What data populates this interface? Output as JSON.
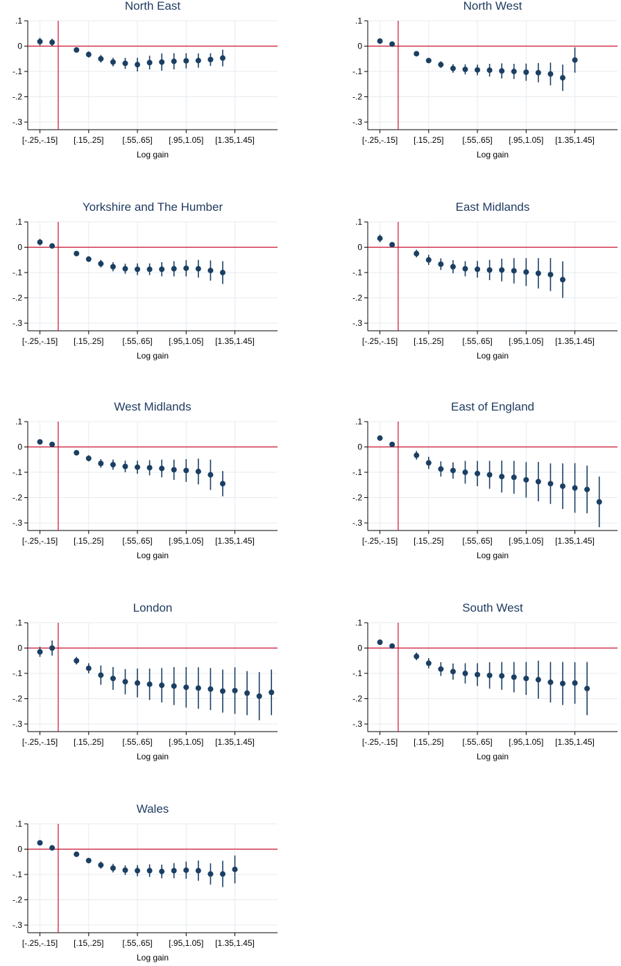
{
  "figure": {
    "colors": {
      "point": "#1b3f63",
      "ref_line": "#c8102e",
      "grid": "#e6ebf0",
      "axis": "#000000",
      "title": "#1e3a5f"
    }
  },
  "chart_data": [
    {
      "type": "scatter",
      "title": "North East",
      "xlabel": "Log gain",
      "ylabel": "",
      "x_ticklabels": [
        "[-.25,-.15]",
        "[.15,.25]",
        "[.55,.65]",
        "[.95,1.05]",
        "[1.35,1.45]"
      ],
      "y_ticklabels": [
        ".1",
        "0",
        "-.1",
        "-.2",
        "-.3"
      ],
      "ylim": [
        -0.33,
        0.1
      ],
      "grid": true,
      "reference_lines": {
        "y": 0,
        "x": -0.05
      },
      "series": [
        {
          "x": [
            -0.2,
            -0.1,
            0.1,
            0.2,
            0.3,
            0.4,
            0.5,
            0.6,
            0.7,
            0.8,
            0.9,
            1.0,
            1.1,
            1.2,
            1.3
          ],
          "y": [
            0.018,
            0.015,
            -0.015,
            -0.033,
            -0.05,
            -0.063,
            -0.068,
            -0.073,
            -0.065,
            -0.063,
            -0.06,
            -0.058,
            -0.057,
            -0.053,
            -0.047
          ],
          "ci_low": [
            0.003,
            0.001,
            -0.024,
            -0.045,
            -0.065,
            -0.08,
            -0.09,
            -0.1,
            -0.092,
            -0.097,
            -0.092,
            -0.088,
            -0.085,
            -0.078,
            -0.08
          ],
          "ci_high": [
            0.033,
            0.029,
            -0.006,
            -0.021,
            -0.035,
            -0.046,
            -0.046,
            -0.046,
            -0.038,
            -0.029,
            -0.028,
            -0.028,
            -0.029,
            -0.028,
            -0.014
          ]
        }
      ]
    },
    {
      "type": "scatter",
      "title": "North West",
      "xlabel": "Log gain",
      "ylabel": "",
      "x_ticklabels": [
        "[-.25,-.15]",
        "[.15,.25]",
        "[.55,.65]",
        "[.95,1.05]",
        "[1.35,1.45]"
      ],
      "y_ticklabels": [
        ".1",
        "0",
        "-.1",
        "-.2",
        "-.3"
      ],
      "ylim": [
        -0.33,
        0.1
      ],
      "grid": true,
      "reference_lines": {
        "y": 0,
        "x": -0.05
      },
      "series": [
        {
          "x": [
            -0.2,
            -0.1,
            0.1,
            0.2,
            0.3,
            0.4,
            0.5,
            0.6,
            0.7,
            0.8,
            0.9,
            1.0,
            1.1,
            1.2,
            1.3,
            1.4
          ],
          "y": [
            0.02,
            0.008,
            -0.03,
            -0.057,
            -0.073,
            -0.088,
            -0.092,
            -0.094,
            -0.095,
            -0.098,
            -0.1,
            -0.103,
            -0.105,
            -0.11,
            -0.125,
            -0.055
          ],
          "ci_low": [
            0.014,
            0.003,
            -0.036,
            -0.065,
            -0.086,
            -0.105,
            -0.112,
            -0.115,
            -0.12,
            -0.128,
            -0.13,
            -0.137,
            -0.143,
            -0.155,
            -0.177,
            -0.105
          ],
          "ci_high": [
            0.026,
            0.013,
            -0.024,
            -0.049,
            -0.06,
            -0.071,
            -0.072,
            -0.073,
            -0.07,
            -0.068,
            -0.07,
            -0.069,
            -0.067,
            -0.065,
            -0.073,
            -0.005
          ]
        }
      ]
    },
    {
      "type": "scatter",
      "title": "Yorkshire and The Humber",
      "xlabel": "Log gain",
      "ylabel": "",
      "x_ticklabels": [
        "[-.25,-.15]",
        "[.15,.25]",
        "[.55,.65]",
        "[.95,1.05]",
        "[1.35,1.45]"
      ],
      "y_ticklabels": [
        ".1",
        "0",
        "-.1",
        "-.2",
        "-.3"
      ],
      "ylim": [
        -0.33,
        0.1
      ],
      "grid": true,
      "reference_lines": {
        "y": 0,
        "x": -0.05
      },
      "series": [
        {
          "x": [
            -0.2,
            -0.1,
            0.1,
            0.2,
            0.3,
            0.4,
            0.5,
            0.6,
            0.7,
            0.8,
            0.9,
            1.0,
            1.1,
            1.2,
            1.3
          ],
          "y": [
            0.02,
            0.005,
            -0.025,
            -0.047,
            -0.065,
            -0.077,
            -0.085,
            -0.087,
            -0.087,
            -0.087,
            -0.085,
            -0.083,
            -0.085,
            -0.092,
            -0.1
          ],
          "ci_low": [
            0.007,
            -0.003,
            -0.033,
            -0.058,
            -0.08,
            -0.095,
            -0.105,
            -0.11,
            -0.11,
            -0.115,
            -0.115,
            -0.115,
            -0.12,
            -0.132,
            -0.145
          ],
          "ci_high": [
            0.033,
            0.013,
            -0.017,
            -0.036,
            -0.05,
            -0.059,
            -0.065,
            -0.064,
            -0.064,
            -0.059,
            -0.055,
            -0.051,
            -0.05,
            -0.052,
            -0.055
          ]
        }
      ]
    },
    {
      "type": "scatter",
      "title": "East Midlands",
      "xlabel": "Log gain",
      "ylabel": "",
      "x_ticklabels": [
        "[-.25,-.15]",
        "[.15,.25]",
        "[.55,.65]",
        "[.95,1.05]",
        "[1.35,1.45]"
      ],
      "y_ticklabels": [
        ".1",
        "0",
        "-.1",
        "-.2",
        "-.3"
      ],
      "ylim": [
        -0.33,
        0.1
      ],
      "grid": true,
      "reference_lines": {
        "y": 0,
        "x": -0.05
      },
      "series": [
        {
          "x": [
            -0.2,
            -0.1,
            0.1,
            0.2,
            0.3,
            0.4,
            0.5,
            0.6,
            0.7,
            0.8,
            0.9,
            1.0,
            1.1,
            1.2,
            1.3
          ],
          "y": [
            0.035,
            0.01,
            -0.025,
            -0.05,
            -0.067,
            -0.077,
            -0.085,
            -0.087,
            -0.09,
            -0.09,
            -0.093,
            -0.098,
            -0.103,
            -0.108,
            -0.128
          ],
          "ci_low": [
            0.02,
            0.004,
            -0.04,
            -0.07,
            -0.09,
            -0.103,
            -0.115,
            -0.12,
            -0.13,
            -0.135,
            -0.143,
            -0.153,
            -0.163,
            -0.173,
            -0.2
          ],
          "ci_high": [
            0.05,
            0.016,
            -0.01,
            -0.03,
            -0.044,
            -0.051,
            -0.055,
            -0.054,
            -0.05,
            -0.045,
            -0.043,
            -0.043,
            -0.043,
            -0.043,
            -0.056
          ]
        }
      ]
    },
    {
      "type": "scatter",
      "title": "West Midlands",
      "xlabel": "Log gain",
      "ylabel": "",
      "x_ticklabels": [
        "[-.25,-.15]",
        "[.15,.25]",
        "[.55,.65]",
        "[.95,1.05]",
        "[1.35,1.45]"
      ],
      "y_ticklabels": [
        ".1",
        "0",
        "-.1",
        "-.2",
        "-.3"
      ],
      "ylim": [
        -0.33,
        0.1
      ],
      "grid": true,
      "reference_lines": {
        "y": 0,
        "x": -0.05
      },
      "series": [
        {
          "x": [
            -0.2,
            -0.1,
            0.1,
            0.2,
            0.3,
            0.4,
            0.5,
            0.6,
            0.7,
            0.8,
            0.9,
            1.0,
            1.1,
            1.2,
            1.3
          ],
          "y": [
            0.02,
            0.01,
            -0.023,
            -0.045,
            -0.065,
            -0.07,
            -0.077,
            -0.08,
            -0.082,
            -0.085,
            -0.09,
            -0.093,
            -0.097,
            -0.11,
            -0.145
          ],
          "ci_low": [
            0.014,
            0.004,
            -0.033,
            -0.057,
            -0.082,
            -0.09,
            -0.1,
            -0.106,
            -0.112,
            -0.12,
            -0.13,
            -0.138,
            -0.148,
            -0.17,
            -0.195
          ],
          "ci_high": [
            0.026,
            0.016,
            -0.013,
            -0.033,
            -0.048,
            -0.05,
            -0.054,
            -0.054,
            -0.052,
            -0.05,
            -0.05,
            -0.048,
            -0.046,
            -0.05,
            -0.095
          ]
        }
      ]
    },
    {
      "type": "scatter",
      "title": "East of England",
      "xlabel": "Log gain",
      "ylabel": "",
      "x_ticklabels": [
        "[-.25,-.15]",
        "[.15,.25]",
        "[.55,.65]",
        "[.95,1.05]",
        "[1.35,1.45]"
      ],
      "y_ticklabels": [
        ".1",
        "0",
        "-.1",
        "-.2",
        "-.3"
      ],
      "ylim": [
        -0.33,
        0.1
      ],
      "grid": true,
      "reference_lines": {
        "y": 0,
        "x": -0.05
      },
      "series": [
        {
          "x": [
            -0.2,
            -0.1,
            0.1,
            0.2,
            0.3,
            0.4,
            0.5,
            0.6,
            0.7,
            0.8,
            0.9,
            1.0,
            1.1,
            1.2,
            1.3,
            1.4,
            1.5,
            1.6
          ],
          "y": [
            0.035,
            0.01,
            -0.033,
            -0.063,
            -0.087,
            -0.093,
            -0.1,
            -0.105,
            -0.11,
            -0.117,
            -0.12,
            -0.13,
            -0.137,
            -0.145,
            -0.155,
            -0.162,
            -0.168,
            -0.217
          ],
          "ci_low": [
            0.025,
            0.004,
            -0.05,
            -0.087,
            -0.117,
            -0.125,
            -0.145,
            -0.155,
            -0.165,
            -0.18,
            -0.185,
            -0.2,
            -0.215,
            -0.225,
            -0.245,
            -0.26,
            -0.262,
            -0.317
          ],
          "ci_high": [
            0.045,
            0.016,
            -0.016,
            -0.039,
            -0.057,
            -0.061,
            -0.055,
            -0.055,
            -0.055,
            -0.054,
            -0.055,
            -0.06,
            -0.059,
            -0.065,
            -0.065,
            -0.064,
            -0.074,
            -0.117
          ]
        }
      ]
    },
    {
      "type": "scatter",
      "title": "London",
      "xlabel": "Log gain",
      "ylabel": "",
      "x_ticklabels": [
        "[-.25,-.15]",
        "[.15,.25]",
        "[.55,.65]",
        "[.95,1.05]",
        "[1.35,1.45]"
      ],
      "y_ticklabels": [
        ".1",
        "0",
        "-.1",
        "-.2",
        "-.3"
      ],
      "ylim": [
        -0.33,
        0.1
      ],
      "grid": true,
      "reference_lines": {
        "y": 0,
        "x": -0.05
      },
      "series": [
        {
          "x": [
            -0.2,
            -0.1,
            0.1,
            0.2,
            0.3,
            0.4,
            0.5,
            0.6,
            0.7,
            0.8,
            0.9,
            1.0,
            1.1,
            1.2,
            1.3,
            1.4,
            1.5,
            1.6,
            1.7
          ],
          "y": [
            -0.015,
            0.0,
            -0.05,
            -0.08,
            -0.107,
            -0.12,
            -0.133,
            -0.138,
            -0.143,
            -0.147,
            -0.15,
            -0.155,
            -0.158,
            -0.162,
            -0.17,
            -0.168,
            -0.178,
            -0.19,
            -0.175
          ],
          "ci_low": [
            -0.035,
            -0.03,
            -0.065,
            -0.1,
            -0.145,
            -0.165,
            -0.183,
            -0.195,
            -0.205,
            -0.215,
            -0.225,
            -0.235,
            -0.24,
            -0.245,
            -0.255,
            -0.26,
            -0.265,
            -0.285,
            -0.265
          ],
          "ci_high": [
            0.005,
            0.03,
            -0.035,
            -0.06,
            -0.069,
            -0.075,
            -0.083,
            -0.081,
            -0.081,
            -0.079,
            -0.075,
            -0.075,
            -0.076,
            -0.079,
            -0.085,
            -0.076,
            -0.091,
            -0.095,
            -0.085
          ]
        }
      ]
    },
    {
      "type": "scatter",
      "title": "South West",
      "xlabel": "Log gain",
      "ylabel": "",
      "x_ticklabels": [
        "[-.25,-.15]",
        "[.15,.25]",
        "[.55,.65]",
        "[.95,1.05]",
        "[1.35,1.45]"
      ],
      "y_ticklabels": [
        ".1",
        "0",
        "-.1",
        "-.2",
        "-.3"
      ],
      "ylim": [
        -0.33,
        0.1
      ],
      "grid": true,
      "reference_lines": {
        "y": 0,
        "x": -0.05
      },
      "series": [
        {
          "x": [
            -0.2,
            -0.1,
            0.1,
            0.2,
            0.3,
            0.4,
            0.5,
            0.6,
            0.7,
            0.8,
            0.9,
            1.0,
            1.1,
            1.2,
            1.3,
            1.4,
            1.5
          ],
          "y": [
            0.023,
            0.008,
            -0.033,
            -0.06,
            -0.083,
            -0.093,
            -0.1,
            -0.105,
            -0.108,
            -0.11,
            -0.115,
            -0.12,
            -0.125,
            -0.135,
            -0.14,
            -0.138,
            -0.16
          ],
          "ci_low": [
            0.016,
            0.002,
            -0.048,
            -0.08,
            -0.11,
            -0.125,
            -0.14,
            -0.15,
            -0.16,
            -0.165,
            -0.175,
            -0.185,
            -0.2,
            -0.215,
            -0.225,
            -0.22,
            -0.265
          ],
          "ci_high": [
            0.03,
            0.014,
            -0.018,
            -0.04,
            -0.056,
            -0.061,
            -0.06,
            -0.06,
            -0.056,
            -0.055,
            -0.055,
            -0.055,
            -0.05,
            -0.055,
            -0.055,
            -0.056,
            -0.055
          ]
        }
      ]
    },
    {
      "type": "scatter",
      "title": "Wales",
      "xlabel": "Log gain",
      "ylabel": "",
      "x_ticklabels": [
        "[-.25,-.15]",
        "[.15,.25]",
        "[.55,.65]",
        "[.95,1.05]",
        "[1.35,1.45]"
      ],
      "y_ticklabels": [
        ".1",
        "0",
        "-.1",
        "-.2",
        "-.3"
      ],
      "ylim": [
        -0.33,
        0.1
      ],
      "grid": true,
      "reference_lines": {
        "y": 0,
        "x": -0.05
      },
      "series": [
        {
          "x": [
            -0.2,
            -0.1,
            0.1,
            0.2,
            0.3,
            0.4,
            0.5,
            0.6,
            0.7,
            0.8,
            0.9,
            1.0,
            1.1,
            1.2,
            1.3,
            1.4
          ],
          "y": [
            0.025,
            0.005,
            -0.02,
            -0.045,
            -0.063,
            -0.075,
            -0.083,
            -0.085,
            -0.085,
            -0.088,
            -0.085,
            -0.083,
            -0.085,
            -0.098,
            -0.098,
            -0.08
          ],
          "ci_low": [
            0.019,
            -0.001,
            -0.028,
            -0.055,
            -0.077,
            -0.092,
            -0.102,
            -0.107,
            -0.11,
            -0.115,
            -0.115,
            -0.117,
            -0.125,
            -0.14,
            -0.15,
            -0.135
          ],
          "ci_high": [
            0.031,
            0.011,
            -0.012,
            -0.035,
            -0.049,
            -0.058,
            -0.064,
            -0.063,
            -0.06,
            -0.061,
            -0.055,
            -0.049,
            -0.045,
            -0.056,
            -0.046,
            -0.025
          ]
        }
      ]
    }
  ]
}
